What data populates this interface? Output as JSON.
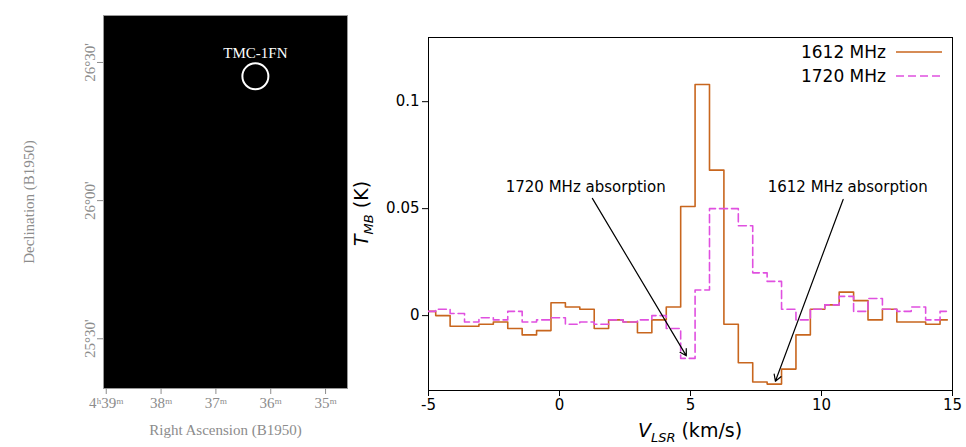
{
  "chart_data": [
    {
      "type": "map",
      "xlabel": "Right Ascension (B1950)",
      "ylabel": "Declination (B1950)",
      "color": "#000000",
      "xlim": [
        39.05,
        34.6
      ],
      "ylim": [
        25.32,
        26.67
      ],
      "xticks": [
        {
          "value": 39,
          "label": "4ʰ39ᵐ"
        },
        {
          "value": 38,
          "label": "38ᵐ"
        },
        {
          "value": 37,
          "label": "37ᵐ"
        },
        {
          "value": 36,
          "label": "36ᵐ"
        },
        {
          "value": 35,
          "label": "35ᵐ"
        }
      ],
      "yticks": [
        {
          "value": 25.5,
          "label": "25°30'"
        },
        {
          "value": 26,
          "label": "26°00'"
        },
        {
          "value": 26.5,
          "label": "26°30'"
        }
      ],
      "annotations": [
        {
          "text": "TMC-1FN",
          "x": 36.28,
          "y": 26.45,
          "marker": "circle",
          "color": "#ffffff"
        }
      ]
    },
    {
      "type": "line",
      "xlabel": {
        "main": "V",
        "sub": "LSR",
        "rest": " (km/s)"
      },
      "ylabel": {
        "main": "T",
        "sub": "MB",
        "rest": " (K)"
      },
      "x": [
        -5,
        -4.45,
        -3.9,
        -3.35,
        -2.8,
        -2.25,
        -1.7,
        -1.15,
        -0.6,
        -0.05,
        0.5,
        1.05,
        1.6,
        2.15,
        2.7,
        3.25,
        3.8,
        4.35,
        4.9,
        5.45,
        6.0,
        6.55,
        7.1,
        7.65,
        8.2,
        8.75,
        9.3,
        9.85,
        10.4,
        10.95,
        11.5,
        12.05,
        12.6,
        13.15,
        13.7,
        14.25,
        14.8
      ],
      "series": [
        {
          "name": "1612 MHz",
          "color": "#c8661e",
          "line_style": "solid",
          "values": [
            0.002,
            0,
            -0.005,
            -0.005,
            -0.004,
            -0.003,
            -0.006,
            -0.009,
            -0.007,
            0.006,
            0.004,
            0.003,
            -0.006,
            -0.002,
            -0.003,
            -0.008,
            -0.002,
            0.004,
            0.051,
            0.108,
            0.068,
            -0.004,
            -0.022,
            -0.031,
            -0.032,
            -0.025,
            -0.009,
            0.003,
            0.005,
            0.011,
            0.007,
            -0.002,
            0.003,
            -0.003,
            -0.003,
            -0.004,
            -0.002
          ]
        },
        {
          "name": "1720 MHz",
          "color": "#e050e0",
          "line_style": "dashed",
          "values": [
            0.002,
            0.003,
            0.001,
            -0.003,
            -0.001,
            -0.002,
            0.002,
            -0.003,
            -0.002,
            -0.001,
            -0.004,
            -0.003,
            -0.004,
            -0.002,
            -0.003,
            -0.002,
            0,
            -0.006,
            -0.02,
            0.012,
            0.05,
            0.05,
            0.042,
            0.02,
            0.016,
            0.003,
            -0.002,
            0.003,
            0.005,
            0.009,
            0.002,
            0.008,
            0.003,
            0.002,
            0.004,
            -0.002,
            0.002
          ]
        }
      ],
      "xlim": [
        -5,
        15
      ],
      "xticks": [
        -5,
        0,
        5,
        10,
        15
      ],
      "ylim": [
        -0.035,
        0.13
      ],
      "yticks": [
        0,
        0.05,
        0.1
      ],
      "legend": "upper right",
      "annotations": [
        {
          "text": "1720 MHz absorption",
          "x": 1.0,
          "y": 0.06,
          "series": "1720 MHz"
        },
        {
          "text": "1612 MHz absorption",
          "x": 11,
          "y": 0.06,
          "series": "1612 MHz"
        }
      ]
    }
  ]
}
